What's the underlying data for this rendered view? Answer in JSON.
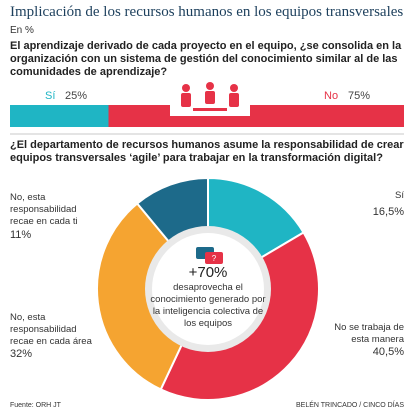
{
  "header": {
    "title": "Implicación de los recursos humanos en los equipos transversales",
    "subtitle": "En %"
  },
  "chart_data": [
    {
      "type": "stacked-bar",
      "title": "El aprendizaje derivado de cada proyecto en el equipo, ¿se consolida en la organización con un sistema de gestión del conocimiento similar al de las comunidades de aprendizaje?",
      "series": [
        {
          "name": "Sí",
          "color": "#1fb5c4",
          "values": [
            25
          ],
          "value_labels": [
            "25%"
          ]
        },
        {
          "name": "No",
          "color": "#e63247",
          "values": [
            75
          ],
          "value_labels": [
            "75%"
          ]
        }
      ]
    },
    {
      "type": "donut",
      "title": "¿El departamento de recursos humanos asume la responsabilidad de crear equipos transversales ‘agile’ para trabajar en la transformación digital?",
      "categories": [
        "Sí",
        "No se trabaja de esta manera",
        "No, esta responsabilidad recae en cada área",
        "No, esta responsabilidad recae en cada ti"
      ],
      "values": [
        16.5,
        40.5,
        32,
        11
      ],
      "value_labels": [
        "16,5%",
        "40,5%",
        "32%",
        "11%"
      ],
      "colors": [
        "#1fb5c4",
        "#e63247",
        "#f5a431",
        "#1d6a8a"
      ],
      "annotation": {
        "value": "+70%",
        "text": "desaprovecha el conocimiento generado por la inteligencia colectiva de los equipos"
      }
    }
  ],
  "footer": {
    "source": "Fuente: ORH JT",
    "credit": "BELÉN TRINCADO / CINCO DÍAS"
  }
}
